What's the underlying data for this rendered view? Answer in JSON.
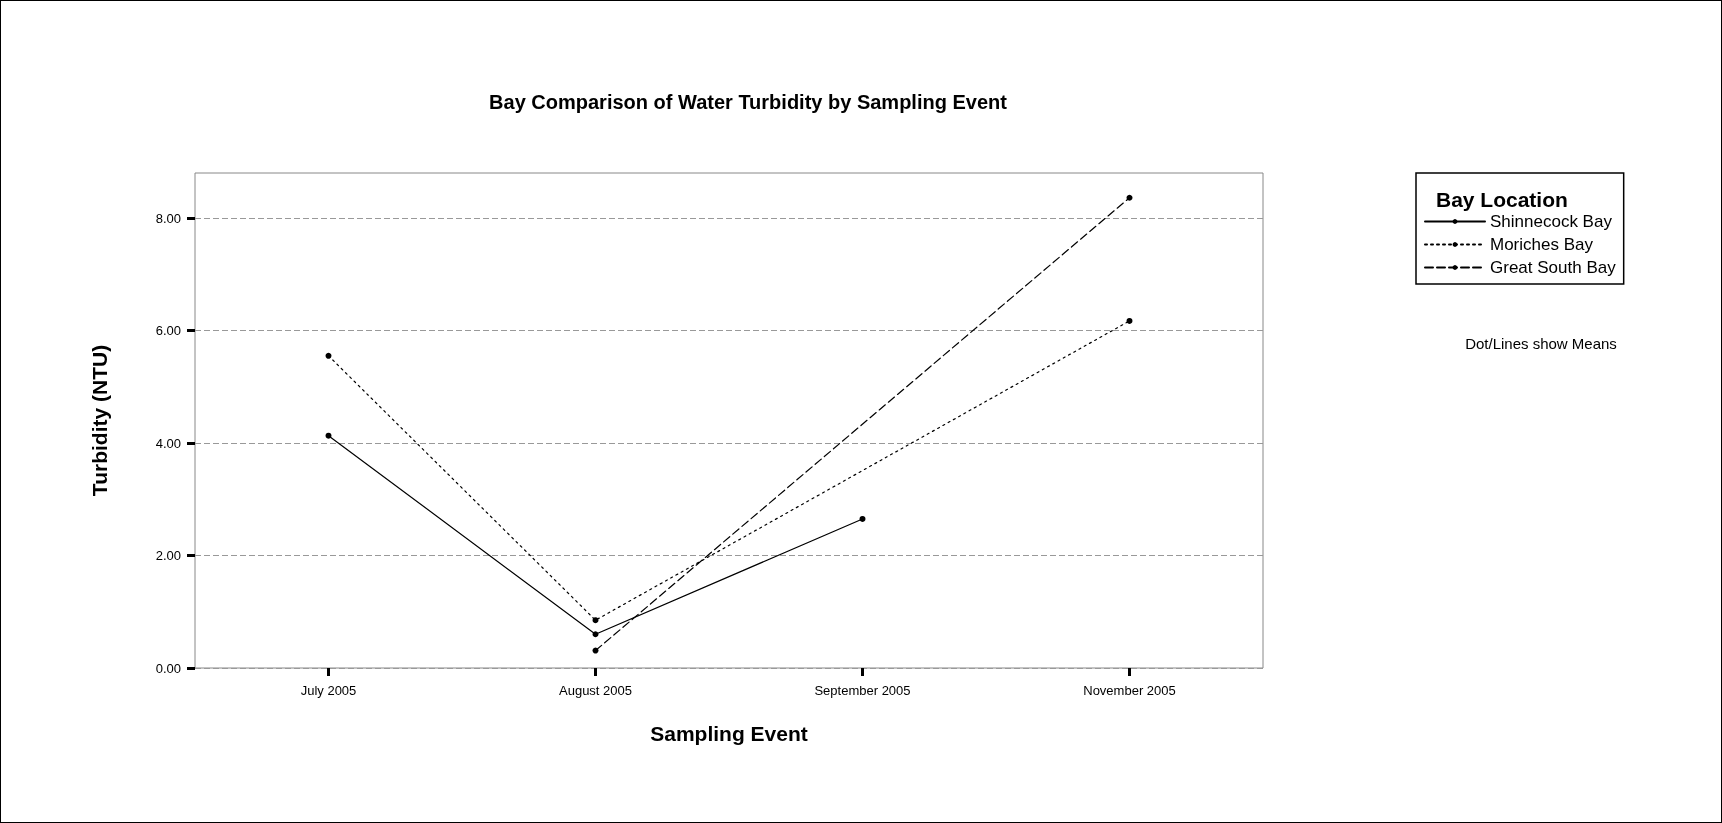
{
  "chart_data": {
    "type": "line",
    "title": "Bay Comparison of Water Turbidity by Sampling Event",
    "xlabel": "Sampling Event",
    "ylabel": "Turbidity (NTU)",
    "legend_title": "Bay Location",
    "annotations": [
      "Dot/Lines show Means"
    ],
    "categories": [
      "July 2005",
      "August 2005",
      "September 2005",
      "November 2005"
    ],
    "series": [
      {
        "name": "Shinnecock Bay",
        "color": "#000000",
        "line_style": "solid",
        "values": [
          4.13,
          0.6,
          2.65,
          null
        ]
      },
      {
        "name": "Moriches Bay",
        "color": "#000000",
        "line_style": "dotted",
        "values": [
          5.55,
          0.85,
          null,
          6.17
        ]
      },
      {
        "name": "Great South Bay",
        "color": "#000000",
        "line_style": "dashed",
        "values": [
          null,
          0.31,
          null,
          8.36
        ]
      }
    ],
    "ylim": [
      0,
      8.8
    ],
    "yticks": [
      {
        "value": 0,
        "label": "0.00"
      },
      {
        "value": 2,
        "label": "2.00"
      },
      {
        "value": 4,
        "label": "4.00"
      },
      {
        "value": 6,
        "label": "6.00"
      },
      {
        "value": 8,
        "label": "8.00"
      }
    ],
    "grid": "y",
    "legend": "right",
    "marker": "circle"
  }
}
